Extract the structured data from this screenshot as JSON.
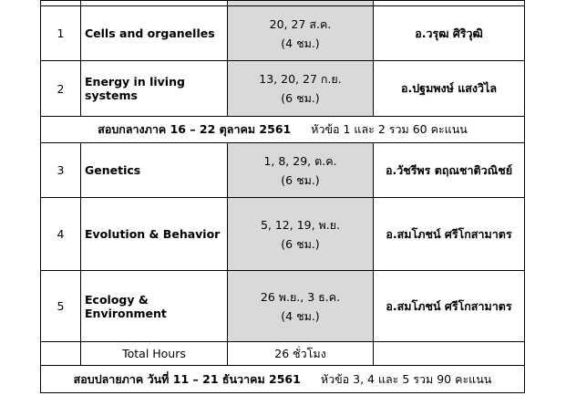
{
  "rows_top": [
    {
      "num": "1",
      "topic": "Cells  and  organelles",
      "date": "20, 27 ส.ค.",
      "hours": "(4 ชม.)",
      "instructor": "อ.วรุฒ ศิริวุฒิ"
    },
    {
      "num": "2",
      "topic": "Energy in living systems",
      "date": "13, 20, 27 ก.ย.",
      "hours": "(6 ชม.)",
      "instructor": "อ.ปฐมพงษ์ แสงวิไล"
    }
  ],
  "midterm": {
    "label": "สอบกลางภาค  16 – 22  ตุลาคม  2561",
    "detail": "หัวข้อ 1 และ 2  รวม 60 คะแนน"
  },
  "rows_bottom": [
    {
      "num": "3",
      "topic": "Genetics",
      "date": "1, 8, 29, ต.ค.",
      "hours": "(6 ชม.)",
      "instructor": "อ.วัชรีพร  ตฤณชาติวณิชย์"
    },
    {
      "num": "4",
      "topic": "Evolution & Behavior",
      "date": "5, 12, 19, พ.ย.",
      "hours": "(6 ชม.)",
      "instructor": "อ.สมโภชน์  ศรีโกสามาตร"
    },
    {
      "num": "5",
      "topic": "Ecology & Environment",
      "date": "26 พ.ย., 3 ธ.ค.",
      "hours": "(4 ชม.)",
      "instructor": "อ.สมโภชน์  ศรีโกสามาตร"
    }
  ],
  "total": {
    "label": "Total Hours",
    "value": "26 ชั่วโมง"
  },
  "final": {
    "label": "สอบปลายภาค  วันที่  11 – 21  ธันวาคม  2561",
    "detail": "หัวข้อ 3, 4 และ 5  รวม 90 คะแนน"
  }
}
